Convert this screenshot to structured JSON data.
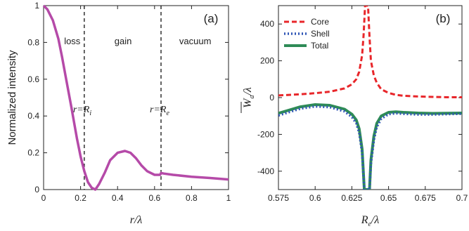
{
  "chart_data": [
    {
      "panel": "(a)",
      "type": "line",
      "ylabel": "Normalized intensity",
      "xlabel_main": "r",
      "xlabel_unit": "λ",
      "xlim": [
        0,
        1
      ],
      "ylim": [
        0,
        1
      ],
      "xticks": [
        "0",
        "0.2",
        "0.4",
        "0.6",
        "0.8",
        "1"
      ],
      "yticks": [
        "0",
        "0.2",
        "0.4",
        "0.6",
        "0.8",
        "1"
      ],
      "color": "#b54aa8",
      "regions": [
        "loss",
        "gain",
        "vacuum"
      ],
      "boundaries": [
        {
          "x": 0.22,
          "label_main": "r=R",
          "label_sub": "i"
        },
        {
          "x": 0.635,
          "label_main": "r=R",
          "label_sub": "e"
        }
      ],
      "series": [
        {
          "x": [
            0,
            0.02,
            0.05,
            0.08,
            0.1,
            0.12,
            0.15,
            0.18,
            0.2,
            0.22,
            0.24,
            0.26,
            0.28,
            0.3,
            0.33,
            0.36,
            0.4,
            0.44,
            0.47,
            0.5,
            0.53,
            0.56,
            0.6,
            0.63,
            0.635,
            0.65,
            0.7,
            0.8,
            0.9,
            1.0
          ],
          "y": [
            1.0,
            0.98,
            0.92,
            0.82,
            0.72,
            0.61,
            0.45,
            0.28,
            0.18,
            0.1,
            0.04,
            0.01,
            0.0,
            0.03,
            0.09,
            0.16,
            0.2,
            0.21,
            0.2,
            0.17,
            0.13,
            0.1,
            0.08,
            0.08,
            0.09,
            0.087,
            0.08,
            0.07,
            0.063,
            0.055
          ]
        }
      ]
    },
    {
      "panel": "(b)",
      "type": "line",
      "ylabel_main": "W",
      "ylabel_sub": "a",
      "ylabel_unit": "λ",
      "xlabel_main": "R",
      "xlabel_sub": "e",
      "xlabel_unit": "λ",
      "xlim": [
        0.575,
        0.7
      ],
      "ylim": [
        -500,
        500
      ],
      "xticks": [
        "0.575",
        "0.6",
        "0.625",
        "0.65",
        "0.675",
        "0.7"
      ],
      "yticks": [
        "-400",
        "-200",
        "0",
        "200",
        "400"
      ],
      "series": [
        {
          "name": "Core",
          "color": "#e8262a",
          "x": [
            0.575,
            0.59,
            0.6,
            0.61,
            0.62,
            0.625,
            0.628,
            0.63,
            0.632,
            0.633,
            0.634,
            0.636,
            0.637,
            0.638,
            0.64,
            0.642,
            0.645,
            0.65,
            0.655,
            0.66,
            0.67,
            0.68,
            0.69,
            0.7
          ],
          "y": [
            12,
            18,
            24,
            32,
            50,
            72,
            100,
            140,
            230,
            340,
            500,
            500,
            330,
            200,
            120,
            80,
            45,
            25,
            15,
            10,
            6,
            4,
            2,
            2
          ]
        },
        {
          "name": "Shell",
          "color": "#2f55b5",
          "x": [
            0.575,
            0.59,
            0.6,
            0.61,
            0.62,
            0.625,
            0.628,
            0.63,
            0.632,
            0.6335,
            0.635,
            0.637,
            0.638,
            0.64,
            0.642,
            0.645,
            0.65,
            0.655,
            0.66,
            0.67,
            0.68,
            0.69,
            0.7
          ],
          "y": [
            -97,
            -60,
            -48,
            -52,
            -75,
            -105,
            -140,
            -190,
            -300,
            -500,
            -500,
            -500,
            -360,
            -230,
            -160,
            -115,
            -90,
            -85,
            -88,
            -92,
            -92,
            -90,
            -88
          ]
        },
        {
          "name": "Total",
          "color": "#2e8b57",
          "x": [
            0.575,
            0.59,
            0.6,
            0.61,
            0.62,
            0.625,
            0.628,
            0.63,
            0.632,
            0.6335,
            0.635,
            0.637,
            0.638,
            0.64,
            0.642,
            0.645,
            0.65,
            0.655,
            0.66,
            0.67,
            0.68,
            0.69,
            0.7
          ],
          "y": [
            -85,
            -50,
            -38,
            -42,
            -63,
            -90,
            -122,
            -170,
            -280,
            -500,
            -500,
            -500,
            -340,
            -210,
            -140,
            -100,
            -80,
            -77,
            -80,
            -84,
            -86,
            -85,
            -84
          ]
        }
      ]
    }
  ]
}
